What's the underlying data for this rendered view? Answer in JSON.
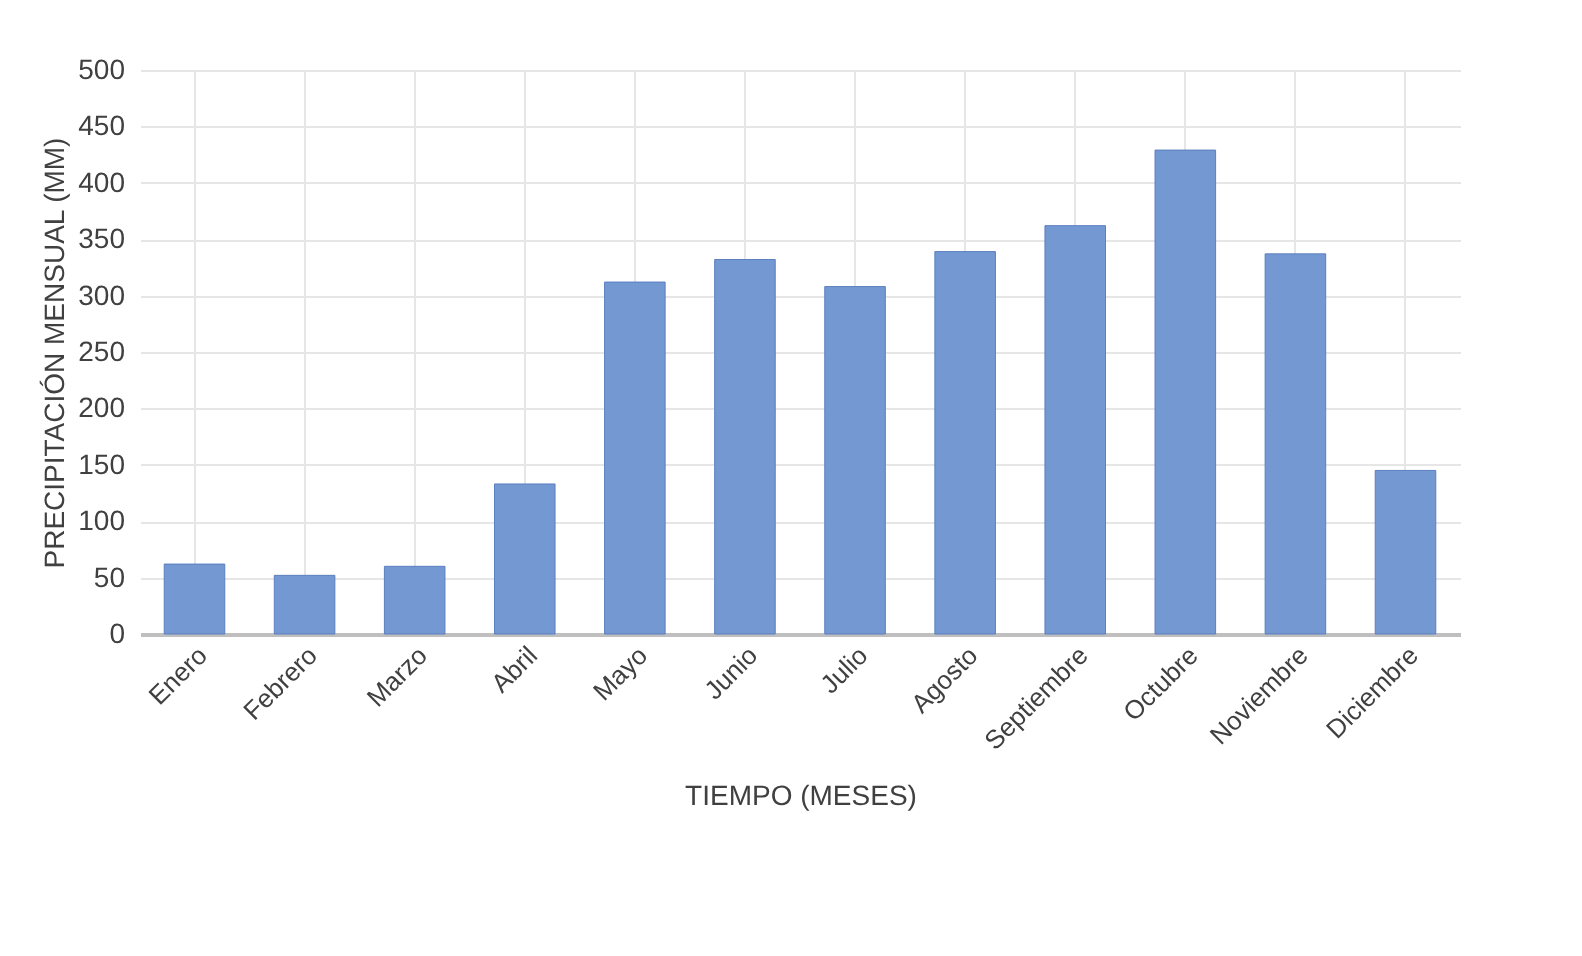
{
  "chart_data": {
    "type": "bar",
    "xlabel": "TIEMPO (MESES)",
    "ylabel": "PRECIPITACIÓN MENSUAL (MM)",
    "categories": [
      "Enero",
      "Febrero",
      "Marzo",
      "Abril",
      "Mayo",
      "Junio",
      "Julio",
      "Agosto",
      "Septiembre",
      "Octubre",
      "Noviembre",
      "Diciembre"
    ],
    "values": [
      62,
      52,
      60,
      133,
      312,
      332,
      308,
      339,
      362,
      429,
      337,
      145
    ],
    "color": "#7398d2",
    "ylim": [
      0,
      500
    ],
    "yticks": [
      0,
      50,
      100,
      150,
      200,
      250,
      300,
      350,
      400,
      450,
      500
    ],
    "grid": true
  }
}
